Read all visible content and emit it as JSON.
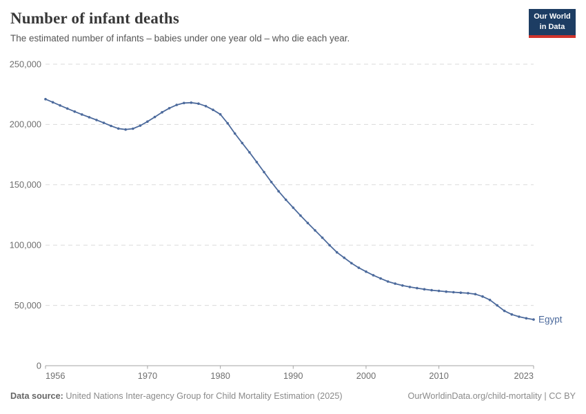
{
  "header": {
    "title": "Number of infant deaths",
    "subtitle": "The estimated number of infants – babies under one year old – who die each year.",
    "logo": {
      "line1": "Our World",
      "line2": "in Data"
    }
  },
  "chart_data": {
    "type": "line",
    "title": "Number of infant deaths",
    "entity": "Egypt",
    "xlabel": "",
    "ylabel": "",
    "ylim": [
      0,
      250000
    ],
    "yticks": [
      0,
      50000,
      100000,
      150000,
      200000,
      250000
    ],
    "xticks": [
      1956,
      1970,
      1980,
      1990,
      2000,
      2010,
      2023
    ],
    "grid": "horizontal-dashed",
    "legend": "end-of-line-label",
    "x": [
      1956,
      1957,
      1958,
      1959,
      1960,
      1961,
      1962,
      1963,
      1964,
      1965,
      1966,
      1967,
      1968,
      1969,
      1970,
      1971,
      1972,
      1973,
      1974,
      1975,
      1976,
      1977,
      1978,
      1979,
      1980,
      1981,
      1982,
      1983,
      1984,
      1985,
      1986,
      1987,
      1988,
      1989,
      1990,
      1991,
      1992,
      1993,
      1994,
      1995,
      1996,
      1997,
      1998,
      1999,
      2000,
      2001,
      2002,
      2003,
      2004,
      2005,
      2006,
      2007,
      2008,
      2009,
      2010,
      2011,
      2012,
      2013,
      2014,
      2015,
      2016,
      2017,
      2018,
      2019,
      2020,
      2021,
      2022,
      2023
    ],
    "series": [
      {
        "name": "Egypt",
        "color": "#4c6a9c",
        "values": [
          221000,
          218400,
          215800,
          213200,
          210700,
          208300,
          206000,
          203700,
          201300,
          198800,
          196600,
          195800,
          196500,
          199000,
          202400,
          206200,
          210100,
          213500,
          216200,
          217800,
          218100,
          217300,
          215200,
          212100,
          208400,
          201000,
          192500,
          184600,
          176900,
          168800,
          160500,
          152300,
          144600,
          137600,
          131000,
          124500,
          118300,
          112200,
          106100,
          99900,
          94000,
          89500,
          85000,
          81200,
          78000,
          75000,
          72300,
          69800,
          68000,
          66500,
          65300,
          64300,
          63400,
          62600,
          62000,
          61400,
          60900,
          60500,
          60100,
          59300,
          57400,
          54500,
          50000,
          45400,
          42500,
          40600,
          39300,
          38300
        ]
      }
    ]
  },
  "footer": {
    "source_label": "Data source:",
    "source": "United Nations Inter-agency Group for Child Mortality Estimation (2025)",
    "link": "OurWorldinData.org/child-mortality | CC BY"
  },
  "colors": {
    "line": "#4c6a9c",
    "logo_bg": "#1d3d63",
    "logo_bar": "#d0342c",
    "grid": "#dadada",
    "axis": "#a3a3a3",
    "tick_text": "#6e6e6e"
  }
}
